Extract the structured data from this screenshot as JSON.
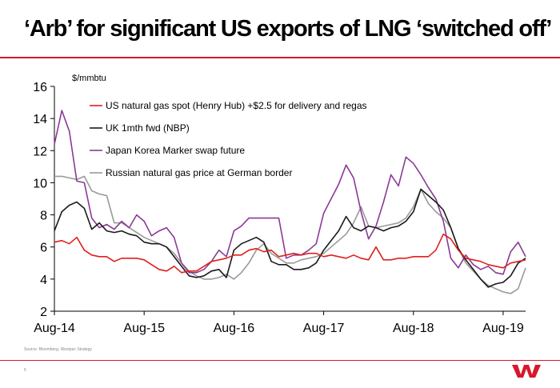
{
  "title": "‘Arb’ for significant US exports of LNG ‘switched off’",
  "source": "Source: Bloomberg, Westpac Strategy",
  "page_number": "5",
  "logo_text": "W",
  "chart_data": {
    "type": "line",
    "unit_label": "$/mmbtu",
    "ylim": [
      2,
      16
    ],
    "yticks": [
      2,
      4,
      6,
      8,
      10,
      12,
      14,
      16
    ],
    "xlim": [
      0,
      63
    ],
    "xticks": [
      {
        "x": 0,
        "label": "Aug-14"
      },
      {
        "x": 12,
        "label": "Aug-15"
      },
      {
        "x": 24,
        "label": "Aug-16"
      },
      {
        "x": 36,
        "label": "Aug-17"
      },
      {
        "x": 48,
        "label": "Aug-18"
      },
      {
        "x": 60,
        "label": "Aug-19"
      }
    ],
    "series": [
      {
        "name": "US natural gas spot (Henry Hub) +$2.5 for delivery and regas",
        "color": "#e0201b",
        "values": [
          6.3,
          6.4,
          6.2,
          6.6,
          5.8,
          5.5,
          5.4,
          5.4,
          5.1,
          5.3,
          5.3,
          5.3,
          5.2,
          4.9,
          4.6,
          4.5,
          4.8,
          4.4,
          4.5,
          4.5,
          4.8,
          5.1,
          5.2,
          5.3,
          5.5,
          5.5,
          5.8,
          5.9,
          5.7,
          5.8,
          5.4,
          5.5,
          5.6,
          5.5,
          5.6,
          5.6,
          5.4,
          5.5,
          5.4,
          5.3,
          5.5,
          5.3,
          5.2,
          6.0,
          5.2,
          5.2,
          5.3,
          5.3,
          5.4,
          5.4,
          5.4,
          5.8,
          6.8,
          6.5,
          5.8,
          5.3,
          5.2,
          5.1,
          4.9,
          4.8,
          4.7,
          5.0,
          5.1,
          5.2
        ]
      },
      {
        "name": "UK 1mth fwd (NBP)",
        "color": "#1a1a1a",
        "values": [
          7.0,
          8.2,
          8.6,
          8.8,
          8.4,
          7.1,
          7.5,
          7.0,
          6.9,
          7.0,
          6.8,
          6.7,
          6.3,
          6.2,
          6.2,
          6.0,
          5.4,
          4.8,
          4.2,
          4.1,
          4.2,
          4.5,
          4.6,
          4.1,
          5.8,
          6.2,
          6.4,
          6.6,
          6.3,
          5.1,
          4.9,
          4.9,
          4.6,
          4.6,
          4.7,
          5.0,
          5.8,
          6.4,
          7.0,
          7.9,
          7.2,
          7.0,
          7.3,
          7.2,
          7.0,
          7.2,
          7.3,
          7.6,
          8.2,
          9.6,
          9.2,
          8.8,
          8.3,
          7.2,
          5.9,
          5.2,
          4.6,
          4.0,
          3.5,
          3.7,
          3.8,
          4.2,
          5.0,
          5.3
        ]
      },
      {
        "name": "Japan Korea Marker swap future",
        "color": "#8b3a96",
        "values": [
          12.4,
          14.5,
          13.2,
          10.1,
          10.0,
          7.8,
          7.2,
          7.4,
          7.1,
          7.6,
          7.2,
          8.0,
          7.6,
          6.7,
          7.0,
          7.2,
          6.6,
          5.0,
          4.4,
          4.4,
          4.6,
          5.1,
          5.8,
          5.4,
          7.0,
          7.3,
          7.8,
          7.8,
          7.8,
          7.8,
          7.8,
          5.3,
          5.5,
          5.5,
          5.8,
          6.2,
          8.1,
          9.0,
          9.9,
          11.1,
          10.3,
          8.2,
          6.5,
          7.3,
          8.8,
          10.5,
          9.8,
          11.6,
          11.2,
          10.5,
          9.7,
          9.0,
          7.6,
          5.3,
          4.7,
          5.5,
          4.9,
          4.6,
          4.8,
          4.4,
          4.3,
          5.7,
          6.3,
          5.4
        ]
      },
      {
        "name": "Russian natural gas price at German border",
        "color": "#9a9a9a",
        "values": [
          10.4,
          10.4,
          10.3,
          10.2,
          10.4,
          9.5,
          9.3,
          9.2,
          7.5,
          7.5,
          7.2,
          6.9,
          6.6,
          6.4,
          6.2,
          6.0,
          5.6,
          5.0,
          4.5,
          4.2,
          4.0,
          4.0,
          4.1,
          4.3,
          4.0,
          4.4,
          5.0,
          5.8,
          6.2,
          5.6,
          5.3,
          5.0,
          5.0,
          5.2,
          5.3,
          5.4,
          5.6,
          6.0,
          6.4,
          6.8,
          7.5,
          8.5,
          7.3,
          7.2,
          7.3,
          7.4,
          7.5,
          7.8,
          8.5,
          9.6,
          8.7,
          8.2,
          7.8,
          7.2,
          5.9,
          5.0,
          4.5,
          4.0,
          3.6,
          3.4,
          3.2,
          3.1,
          3.4,
          4.7
        ]
      }
    ]
  }
}
